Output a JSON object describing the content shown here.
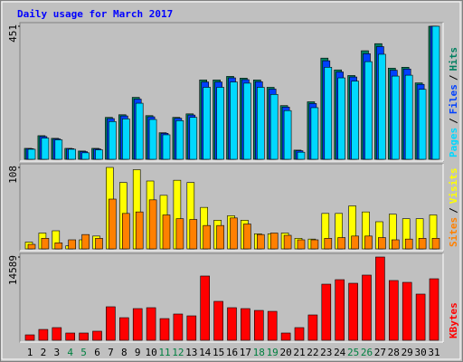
{
  "chart_data": [
    {
      "type": "bar",
      "title": "Daily usage for March 2017",
      "series": [
        {
          "name": "Hits",
          "color": "#008060",
          "values": [
            37,
            80,
            71,
            37,
            28,
            37,
            142,
            151,
            210,
            148,
            90,
            142,
            154,
            269,
            269,
            281,
            275,
            269,
            244,
            182,
            31,
            195,
            343,
            303,
            284,
            368,
            392,
            309,
            312,
            259,
            451
          ]
        },
        {
          "name": "Files",
          "color": "#0040ff",
          "values": [
            36,
            77,
            69,
            36,
            26,
            35,
            138,
            147,
            204,
            144,
            88,
            139,
            150,
            262,
            262,
            276,
            270,
            263,
            238,
            177,
            29,
            189,
            334,
            296,
            279,
            358,
            382,
            302,
            306,
            254,
            451
          ]
        },
        {
          "name": "Pages",
          "color": "#00d8ff",
          "values": [
            34,
            72,
            66,
            34,
            22,
            32,
            128,
            137,
            190,
            135,
            83,
            131,
            142,
            244,
            244,
            262,
            258,
            244,
            220,
            165,
            24,
            175,
            312,
            276,
            265,
            331,
            356,
            282,
            285,
            237,
            451
          ]
        }
      ],
      "legend_separator": "/",
      "ylim": [
        0,
        451
      ],
      "yticks": [
        451
      ]
    },
    {
      "type": "bar",
      "series": [
        {
          "name": "Visits",
          "color": "#ffff00",
          "values": [
            9,
            21,
            24,
            4,
            12,
            17,
            108,
            88,
            105,
            90,
            71,
            91,
            88,
            55,
            38,
            44,
            38,
            20,
            20,
            21,
            14,
            13,
            47,
            47,
            57,
            49,
            36,
            46,
            40,
            40,
            45
          ]
        },
        {
          "name": "Sites",
          "color": "#ff8000",
          "values": [
            6,
            14,
            8,
            12,
            19,
            14,
            66,
            47,
            49,
            65,
            45,
            40,
            39,
            31,
            31,
            41,
            33,
            19,
            21,
            18,
            12,
            12,
            14,
            15,
            17,
            17,
            15,
            12,
            13,
            14,
            14
          ]
        }
      ],
      "legend_separator": "/",
      "ylim": [
        0,
        108
      ],
      "yticks": [
        108
      ]
    },
    {
      "type": "bar",
      "categories": [
        "1",
        "2",
        "3",
        "4",
        "5",
        "6",
        "7",
        "8",
        "9",
        "10",
        "11",
        "12",
        "13",
        "14",
        "15",
        "16",
        "17",
        "18",
        "19",
        "20",
        "21",
        "22",
        "23",
        "24",
        "25",
        "26",
        "27",
        "28",
        "29",
        "30",
        "31"
      ],
      "category_colors": [
        "#000000",
        "#000000",
        "#000000",
        "#008040",
        "#008040",
        "#000000",
        "#000000",
        "#000000",
        "#000000",
        "#000000",
        "#008040",
        "#008040",
        "#000000",
        "#000000",
        "#000000",
        "#000000",
        "#000000",
        "#008040",
        "#008040",
        "#000000",
        "#000000",
        "#000000",
        "#000000",
        "#000000",
        "#008040",
        "#008040",
        "#000000",
        "#000000",
        "#000000",
        "#000000",
        "#000000"
      ],
      "series": [
        {
          "name": "KBytes",
          "color": "#ff0000",
          "values": [
            950,
            1900,
            2220,
            1270,
            1270,
            1590,
            5870,
            3960,
            5550,
            5710,
            3800,
            4600,
            4280,
            11260,
            6820,
            5710,
            5550,
            5230,
            5070,
            1270,
            2220,
            4440,
            9830,
            10620,
            9990,
            11420,
            14589,
            10470,
            10150,
            8090,
            10780
          ]
        }
      ],
      "ylim": [
        0,
        14589
      ],
      "yticks": [
        14589
      ]
    }
  ]
}
